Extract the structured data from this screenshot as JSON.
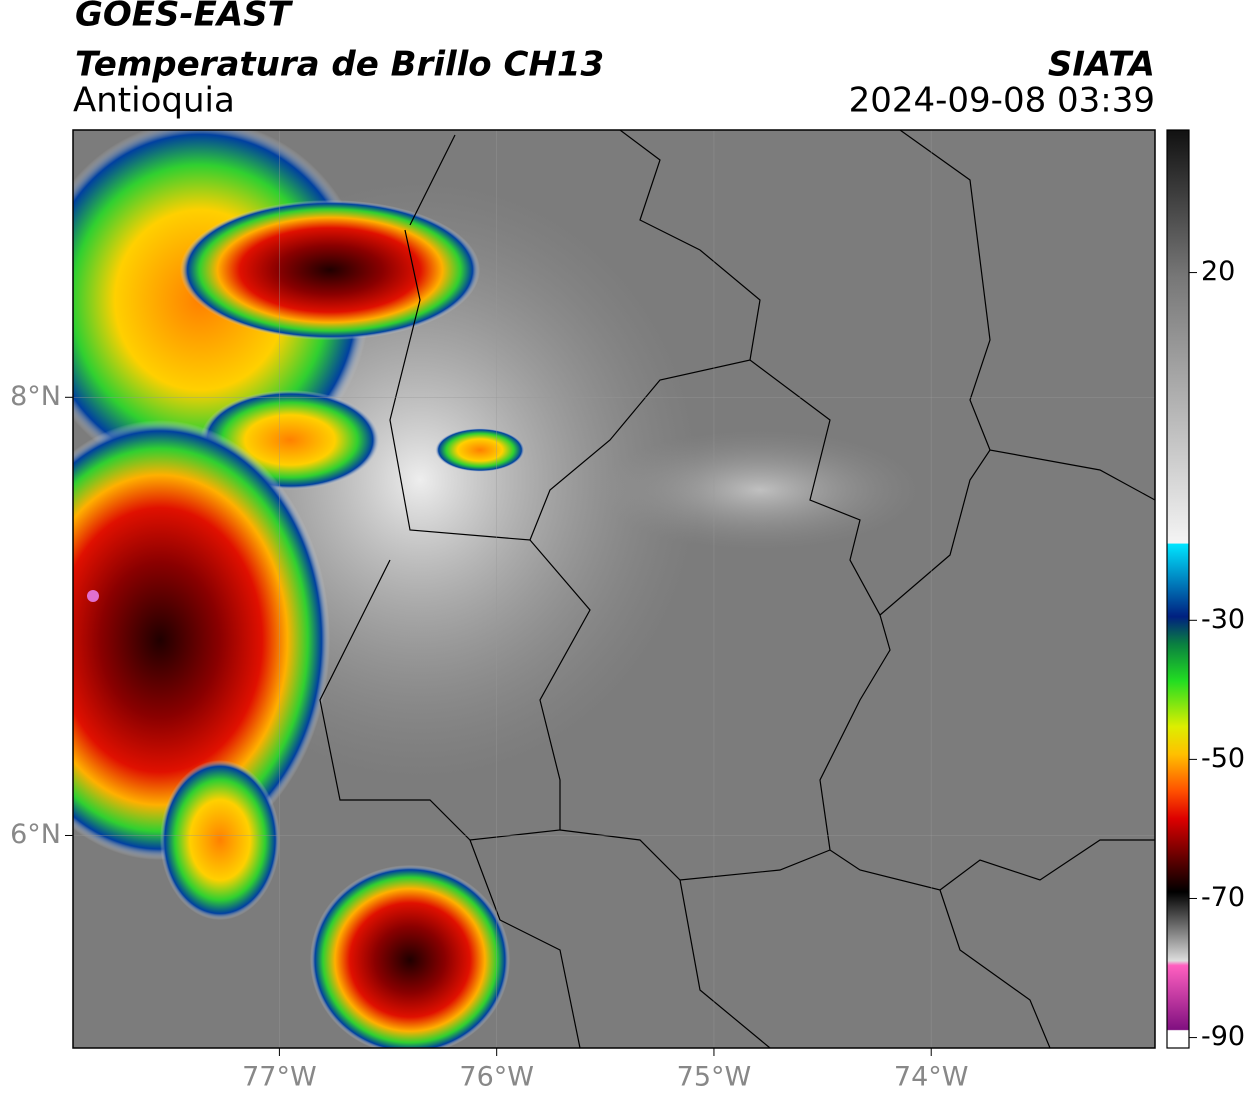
{
  "header": {
    "title": "GOES-EAST",
    "subtitle": "Temperatura de Brillo CH13",
    "region": "Antioquia",
    "source": "SIATA",
    "datetime": "2024-09-08 03:39"
  },
  "map": {
    "xlim": [
      -77.95,
      -72.97
    ],
    "ylim": [
      5.03,
      9.22
    ],
    "xticks": [
      {
        "value": -77,
        "label": "77°W"
      },
      {
        "value": -76,
        "label": "76°W"
      },
      {
        "value": -75,
        "label": "75°W"
      },
      {
        "value": -74,
        "label": "74°W"
      }
    ],
    "yticks": [
      {
        "value": 8,
        "label": "8°N"
      },
      {
        "value": 6,
        "label": "6°N"
      }
    ],
    "grid": true
  },
  "colorbar": {
    "lim": [
      -91.5,
      40.5
    ],
    "ticks": [
      20,
      -30,
      -50,
      -70,
      -90
    ]
  }
}
